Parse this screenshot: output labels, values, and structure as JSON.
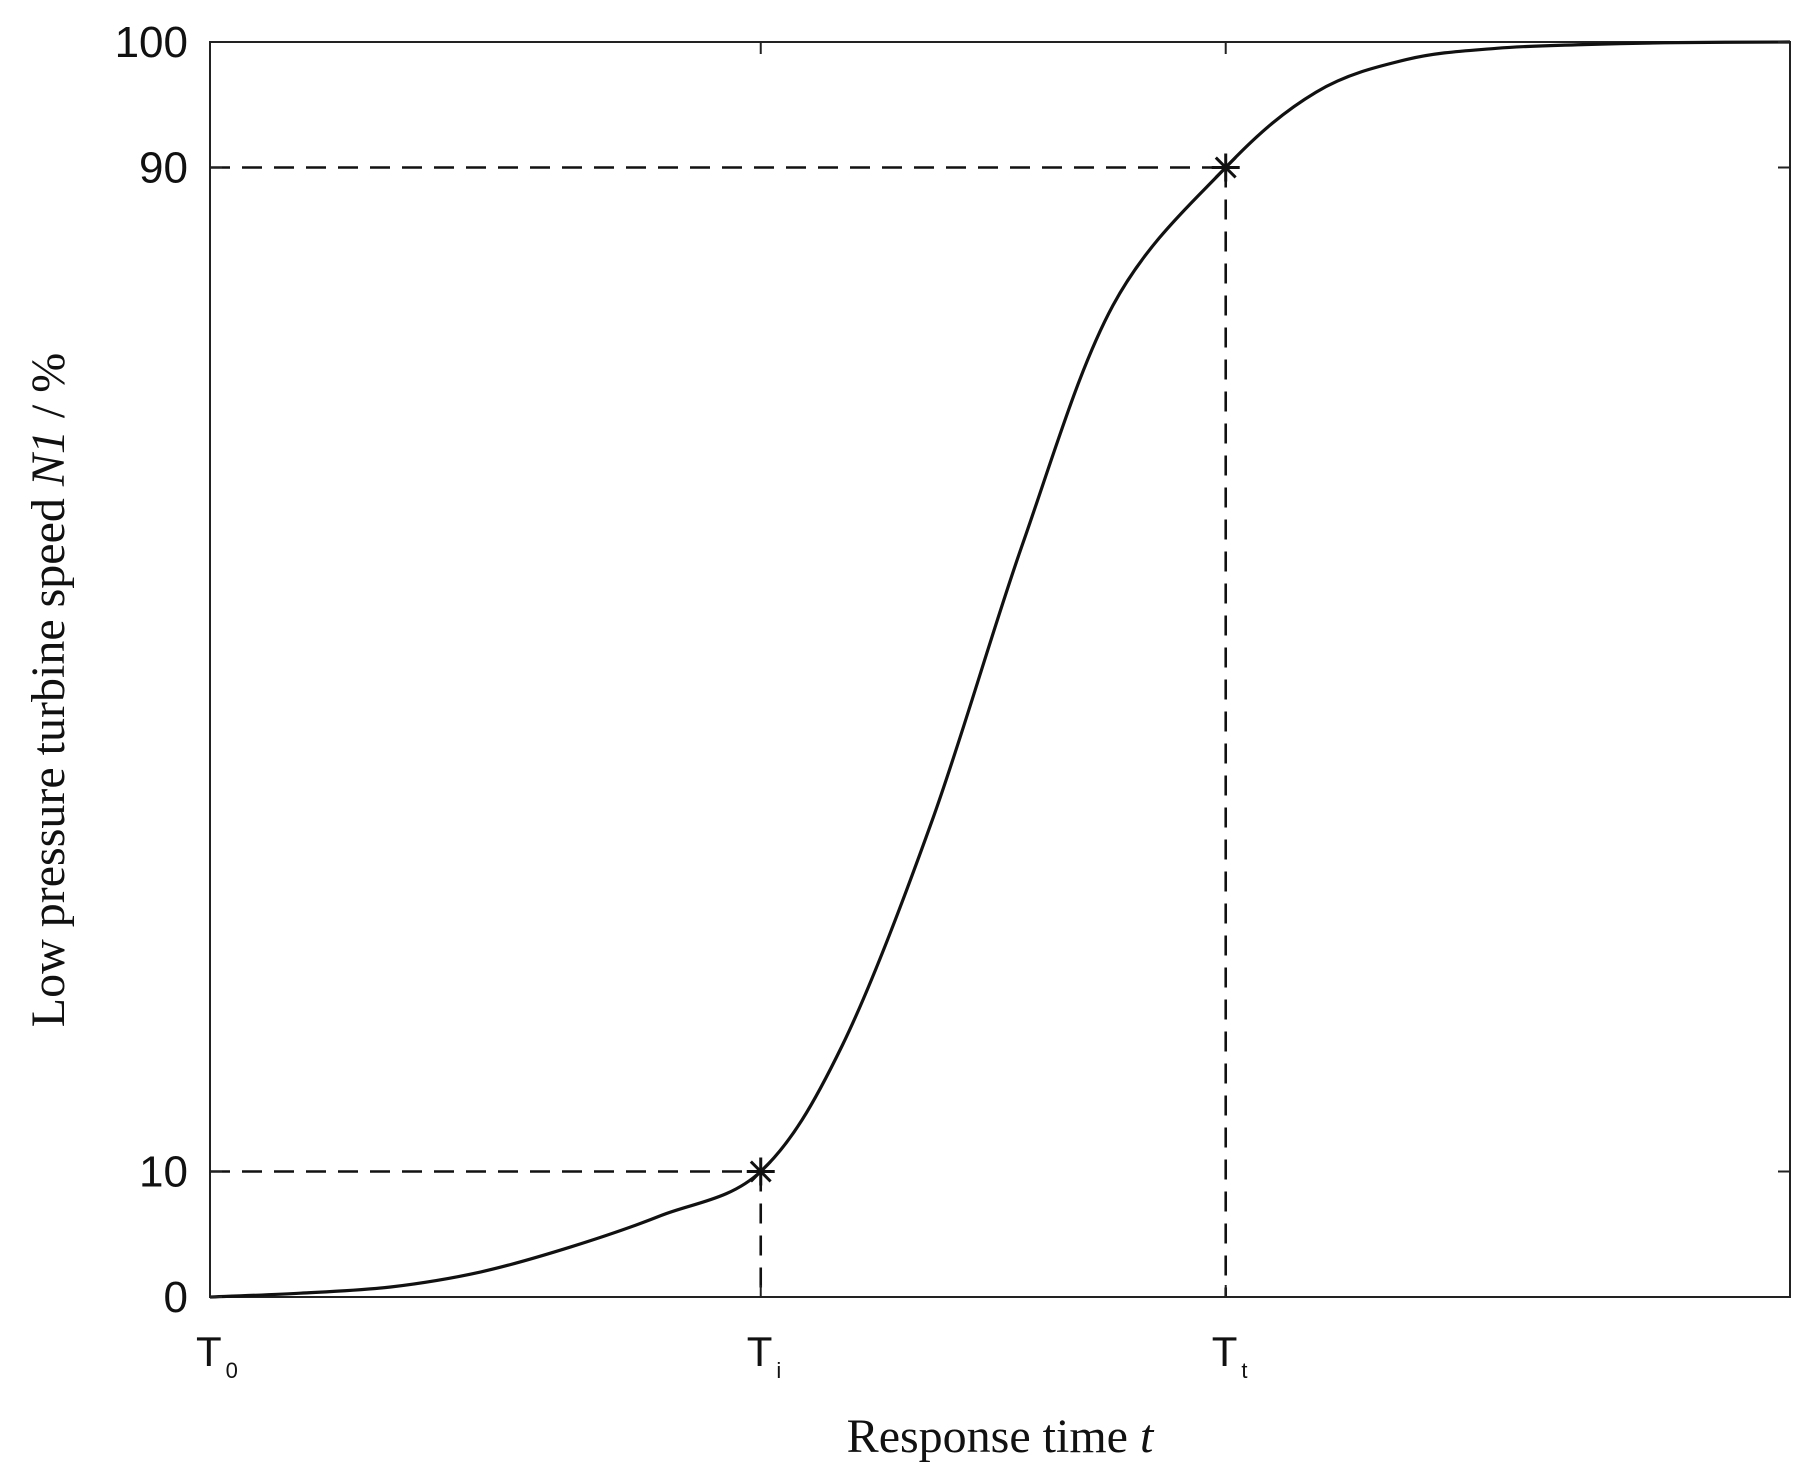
{
  "chart_data": {
    "type": "line",
    "title": "",
    "xlabel": "Response time",
    "xlabel_var": "t",
    "ylabel": "Low pressure turbine speed",
    "ylabel_var": "N1",
    "ylabel_unit": " / %",
    "xlim": [
      0,
      3.5
    ],
    "ylim": [
      0,
      100
    ],
    "y_ticks": [
      0,
      10,
      90,
      100
    ],
    "x_ticks": [
      {
        "value": 0,
        "main": "T",
        "sub": "0"
      },
      {
        "value": 1.22,
        "main": "T",
        "sub": "i"
      },
      {
        "value": 2.25,
        "main": "T",
        "sub": "t"
      }
    ],
    "grid": false,
    "legend": "none",
    "series": [
      {
        "x": [
          0,
          0.2,
          0.4,
          0.6,
          0.8,
          1.0,
          1.22,
          1.4,
          1.6,
          1.8,
          2.0,
          2.25,
          2.45,
          2.65,
          2.85,
          3.05,
          3.25,
          3.5
        ],
        "y": [
          0,
          0.3,
          0.8,
          2,
          4,
          6.5,
          10,
          20,
          38,
          60,
          79,
          90,
          96,
          98.6,
          99.5,
          99.8,
          99.95,
          100
        ]
      }
    ],
    "markers": [
      {
        "x": 1.22,
        "y": 10,
        "symbol": "asterisk"
      },
      {
        "x": 2.25,
        "y": 90,
        "symbol": "asterisk"
      }
    ],
    "reference_lines": [
      {
        "x": 1.22,
        "y": 10
      },
      {
        "x": 2.25,
        "y": 90
      }
    ]
  }
}
